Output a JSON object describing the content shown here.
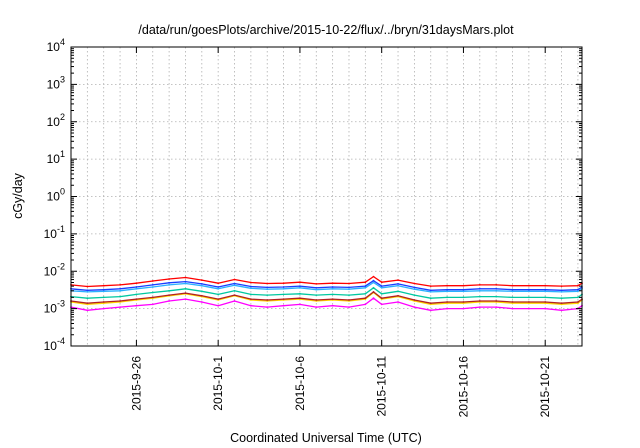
{
  "chart_data": {
    "type": "line",
    "title": "/data/run/goesPlots/archive/2015-10-22/flux/../bryn/31daysMars.plot",
    "xlabel": "Coordinated Universal Time (UTC)",
    "ylabel": "cGy/day",
    "y_scale": "log",
    "ylim": [
      0.0001,
      10000
    ],
    "y_ticks": [
      {
        "value": 0.0001,
        "base": "10",
        "exp": "-4"
      },
      {
        "value": 0.001,
        "base": "10",
        "exp": "-3"
      },
      {
        "value": 0.01,
        "base": "10",
        "exp": "-2"
      },
      {
        "value": 0.1,
        "base": "10",
        "exp": "-1"
      },
      {
        "value": 1,
        "base": "10",
        "exp": "0"
      },
      {
        "value": 10,
        "base": "10",
        "exp": "1"
      },
      {
        "value": 100,
        "base": "10",
        "exp": "2"
      },
      {
        "value": 1000,
        "base": "10",
        "exp": "3"
      },
      {
        "value": 10000,
        "base": "10",
        "exp": "4"
      }
    ],
    "xlim": [
      "2015-09-22",
      "2015-10-23T06:00"
    ],
    "x_ticks": [
      "2015-9-26",
      "2015-10-1",
      "2015-10-6",
      "2015-10-11",
      "2015-10-16",
      "2015-10-21"
    ],
    "x_tick_dates": [
      "2015-09-26",
      "2015-10-01",
      "2015-10-06",
      "2015-10-11",
      "2015-10-16",
      "2015-10-21"
    ],
    "grid": true,
    "series": [
      {
        "color": "#ff00ff",
        "x": [
          "2015-09-22T00:00",
          "2015-09-23T00:00",
          "2015-09-24T00:00",
          "2015-09-25T00:00",
          "2015-09-26T00:00",
          "2015-09-27T00:00",
          "2015-09-28T00:00",
          "2015-09-29T00:00",
          "2015-09-30T00:00",
          "2015-10-01T00:00",
          "2015-10-02T00:00",
          "2015-10-03T00:00",
          "2015-10-04T00:00",
          "2015-10-05T00:00",
          "2015-10-06T00:00",
          "2015-10-07T00:00",
          "2015-10-08T00:00",
          "2015-10-09T00:00",
          "2015-10-10T00:00",
          "2015-10-10T12:00",
          "2015-10-11T00:00",
          "2015-10-12T00:00",
          "2015-10-13T00:00",
          "2015-10-14T00:00",
          "2015-10-15T00:00",
          "2015-10-16T00:00",
          "2015-10-17T00:00",
          "2015-10-18T00:00",
          "2015-10-19T00:00",
          "2015-10-20T00:00",
          "2015-10-21T00:00",
          "2015-10-22T00:00",
          "2015-10-23T00:00",
          "2015-10-23T06:00"
        ],
        "y": [
          0.0011,
          0.0009,
          0.001,
          0.0011,
          0.0012,
          0.0013,
          0.0016,
          0.0018,
          0.0015,
          0.0012,
          0.0016,
          0.0012,
          0.0011,
          0.0012,
          0.0013,
          0.0011,
          0.0012,
          0.0011,
          0.0013,
          0.0019,
          0.0013,
          0.0015,
          0.0011,
          0.0009,
          0.001,
          0.001,
          0.0011,
          0.0011,
          0.001,
          0.001,
          0.001,
          0.0009,
          0.001,
          0.0012
        ]
      },
      {
        "color": "#ffd700",
        "x": [
          "2015-09-22T00:00",
          "2015-09-23T00:00",
          "2015-09-24T00:00",
          "2015-09-25T00:00",
          "2015-09-26T00:00",
          "2015-09-27T00:00",
          "2015-09-28T00:00",
          "2015-09-29T00:00",
          "2015-09-30T00:00",
          "2015-10-01T00:00",
          "2015-10-02T00:00",
          "2015-10-03T00:00",
          "2015-10-04T00:00",
          "2015-10-05T00:00",
          "2015-10-06T00:00",
          "2015-10-07T00:00",
          "2015-10-08T00:00",
          "2015-10-09T00:00",
          "2015-10-10T00:00",
          "2015-10-10T12:00",
          "2015-10-11T00:00",
          "2015-10-12T00:00",
          "2015-10-13T00:00",
          "2015-10-14T00:00",
          "2015-10-15T00:00",
          "2015-10-16T00:00",
          "2015-10-17T00:00",
          "2015-10-18T00:00",
          "2015-10-19T00:00",
          "2015-10-20T00:00",
          "2015-10-21T00:00",
          "2015-10-22T00:00",
          "2015-10-23T00:00",
          "2015-10-23T06:00"
        ],
        "y": [
          0.0015,
          0.0013,
          0.0014,
          0.0015,
          0.0017,
          0.0019,
          0.0022,
          0.0025,
          0.0021,
          0.0017,
          0.0022,
          0.0017,
          0.0016,
          0.0017,
          0.0018,
          0.0016,
          0.0017,
          0.0016,
          0.0018,
          0.0027,
          0.0018,
          0.0021,
          0.0016,
          0.0013,
          0.0014,
          0.0014,
          0.0015,
          0.0015,
          0.0014,
          0.0014,
          0.0014,
          0.0013,
          0.0014,
          0.0017
        ]
      },
      {
        "color": "#b22222",
        "x": [
          "2015-09-22T00:00",
          "2015-09-23T00:00",
          "2015-09-24T00:00",
          "2015-09-25T00:00",
          "2015-09-26T00:00",
          "2015-09-27T00:00",
          "2015-09-28T00:00",
          "2015-09-29T00:00",
          "2015-09-30T00:00",
          "2015-10-01T00:00",
          "2015-10-02T00:00",
          "2015-10-03T00:00",
          "2015-10-04T00:00",
          "2015-10-05T00:00",
          "2015-10-06T00:00",
          "2015-10-07T00:00",
          "2015-10-08T00:00",
          "2015-10-09T00:00",
          "2015-10-10T00:00",
          "2015-10-10T12:00",
          "2015-10-11T00:00",
          "2015-10-12T00:00",
          "2015-10-13T00:00",
          "2015-10-14T00:00",
          "2015-10-15T00:00",
          "2015-10-16T00:00",
          "2015-10-17T00:00",
          "2015-10-18T00:00",
          "2015-10-19T00:00",
          "2015-10-20T00:00",
          "2015-10-21T00:00",
          "2015-10-22T00:00",
          "2015-10-23T00:00",
          "2015-10-23T06:00"
        ],
        "y": [
          0.0016,
          0.0014,
          0.0015,
          0.0016,
          0.0018,
          0.002,
          0.0023,
          0.0026,
          0.0022,
          0.0018,
          0.0023,
          0.0018,
          0.0017,
          0.0018,
          0.0019,
          0.0017,
          0.0018,
          0.0017,
          0.0019,
          0.0028,
          0.0019,
          0.0022,
          0.0017,
          0.0014,
          0.0015,
          0.0015,
          0.0016,
          0.0016,
          0.0015,
          0.0015,
          0.0015,
          0.0014,
          0.0015,
          0.0018
        ]
      },
      {
        "color": "#00c8a0",
        "x": [
          "2015-09-22T00:00",
          "2015-09-23T00:00",
          "2015-09-24T00:00",
          "2015-09-25T00:00",
          "2015-09-26T00:00",
          "2015-09-27T00:00",
          "2015-09-28T00:00",
          "2015-09-29T00:00",
          "2015-09-30T00:00",
          "2015-10-01T00:00",
          "2015-10-02T00:00",
          "2015-10-03T00:00",
          "2015-10-04T00:00",
          "2015-10-05T00:00",
          "2015-10-06T00:00",
          "2015-10-07T00:00",
          "2015-10-08T00:00",
          "2015-10-09T00:00",
          "2015-10-10T00:00",
          "2015-10-10T12:00",
          "2015-10-11T00:00",
          "2015-10-12T00:00",
          "2015-10-13T00:00",
          "2015-10-14T00:00",
          "2015-10-15T00:00",
          "2015-10-16T00:00",
          "2015-10-17T00:00",
          "2015-10-18T00:00",
          "2015-10-19T00:00",
          "2015-10-20T00:00",
          "2015-10-21T00:00",
          "2015-10-22T00:00",
          "2015-10-23T00:00",
          "2015-10-23T06:00"
        ],
        "y": [
          0.0021,
          0.0019,
          0.002,
          0.0021,
          0.0024,
          0.0027,
          0.003,
          0.0034,
          0.0029,
          0.0024,
          0.003,
          0.0024,
          0.0023,
          0.0024,
          0.0025,
          0.0023,
          0.0024,
          0.0023,
          0.0025,
          0.0036,
          0.0025,
          0.0029,
          0.0023,
          0.0019,
          0.002,
          0.002,
          0.0021,
          0.0021,
          0.002,
          0.002,
          0.002,
          0.0019,
          0.002,
          0.0024
        ]
      },
      {
        "color": "#2ab0ff",
        "x": [
          "2015-09-22T00:00",
          "2015-09-23T00:00",
          "2015-09-24T00:00",
          "2015-09-25T00:00",
          "2015-09-26T00:00",
          "2015-09-27T00:00",
          "2015-09-28T00:00",
          "2015-09-29T00:00",
          "2015-09-30T00:00",
          "2015-10-01T00:00",
          "2015-10-02T00:00",
          "2015-10-03T00:00",
          "2015-10-04T00:00",
          "2015-10-05T00:00",
          "2015-10-06T00:00",
          "2015-10-07T00:00",
          "2015-10-08T00:00",
          "2015-10-09T00:00",
          "2015-10-10T00:00",
          "2015-10-10T12:00",
          "2015-10-11T00:00",
          "2015-10-12T00:00",
          "2015-10-13T00:00",
          "2015-10-14T00:00",
          "2015-10-15T00:00",
          "2015-10-16T00:00",
          "2015-10-17T00:00",
          "2015-10-18T00:00",
          "2015-10-19T00:00",
          "2015-10-20T00:00",
          "2015-10-21T00:00",
          "2015-10-22T00:00",
          "2015-10-23T00:00",
          "2015-10-23T06:00"
        ],
        "y": [
          0.003,
          0.0028,
          0.0029,
          0.003,
          0.0034,
          0.0038,
          0.0043,
          0.0047,
          0.0041,
          0.0034,
          0.0042,
          0.0035,
          0.0033,
          0.0034,
          0.0036,
          0.0032,
          0.0034,
          0.0033,
          0.0036,
          0.005,
          0.0036,
          0.0041,
          0.0033,
          0.0028,
          0.0029,
          0.0029,
          0.003,
          0.003,
          0.0029,
          0.0029,
          0.0029,
          0.0028,
          0.0029,
          0.0034
        ]
      },
      {
        "color": "#1a3cff",
        "x": [
          "2015-09-22T00:00",
          "2015-09-23T00:00",
          "2015-09-24T00:00",
          "2015-09-25T00:00",
          "2015-09-26T00:00",
          "2015-09-27T00:00",
          "2015-09-28T00:00",
          "2015-09-29T00:00",
          "2015-09-30T00:00",
          "2015-10-01T00:00",
          "2015-10-02T00:00",
          "2015-10-03T00:00",
          "2015-10-04T00:00",
          "2015-10-05T00:00",
          "2015-10-06T00:00",
          "2015-10-07T00:00",
          "2015-10-08T00:00",
          "2015-10-09T00:00",
          "2015-10-10T00:00",
          "2015-10-10T12:00",
          "2015-10-11T00:00",
          "2015-10-12T00:00",
          "2015-10-13T00:00",
          "2015-10-14T00:00",
          "2015-10-15T00:00",
          "2015-10-16T00:00",
          "2015-10-17T00:00",
          "2015-10-18T00:00",
          "2015-10-19T00:00",
          "2015-10-20T00:00",
          "2015-10-21T00:00",
          "2015-10-22T00:00",
          "2015-10-23T00:00",
          "2015-10-23T06:00"
        ],
        "y": [
          0.0034,
          0.0031,
          0.0032,
          0.0034,
          0.0038,
          0.0043,
          0.0049,
          0.0053,
          0.0046,
          0.0038,
          0.0047,
          0.0039,
          0.0037,
          0.0038,
          0.004,
          0.0036,
          0.0038,
          0.0037,
          0.004,
          0.0056,
          0.004,
          0.0046,
          0.0037,
          0.0031,
          0.0032,
          0.0032,
          0.0034,
          0.0034,
          0.0032,
          0.0032,
          0.0032,
          0.0031,
          0.0032,
          0.0038
        ]
      },
      {
        "color": "#ff0000",
        "x": [
          "2015-09-22T00:00",
          "2015-09-23T00:00",
          "2015-09-24T00:00",
          "2015-09-25T00:00",
          "2015-09-26T00:00",
          "2015-09-27T00:00",
          "2015-09-28T00:00",
          "2015-09-29T00:00",
          "2015-09-30T00:00",
          "2015-10-01T00:00",
          "2015-10-02T00:00",
          "2015-10-03T00:00",
          "2015-10-04T00:00",
          "2015-10-05T00:00",
          "2015-10-06T00:00",
          "2015-10-07T00:00",
          "2015-10-08T00:00",
          "2015-10-09T00:00",
          "2015-10-10T00:00",
          "2015-10-10T12:00",
          "2015-10-11T00:00",
          "2015-10-12T00:00",
          "2015-10-13T00:00",
          "2015-10-14T00:00",
          "2015-10-15T00:00",
          "2015-10-16T00:00",
          "2015-10-17T00:00",
          "2015-10-18T00:00",
          "2015-10-19T00:00",
          "2015-10-20T00:00",
          "2015-10-21T00:00",
          "2015-10-22T00:00",
          "2015-10-23T00:00",
          "2015-10-23T06:00"
        ],
        "y": [
          0.0043,
          0.0039,
          0.0041,
          0.0043,
          0.0048,
          0.0055,
          0.0062,
          0.0068,
          0.0058,
          0.0048,
          0.006,
          0.005,
          0.0047,
          0.0048,
          0.0051,
          0.0046,
          0.0048,
          0.0047,
          0.0051,
          0.0072,
          0.0051,
          0.0058,
          0.0047,
          0.004,
          0.0041,
          0.0041,
          0.0043,
          0.0043,
          0.0041,
          0.0041,
          0.0041,
          0.004,
          0.0041,
          0.0048
        ]
      }
    ]
  }
}
